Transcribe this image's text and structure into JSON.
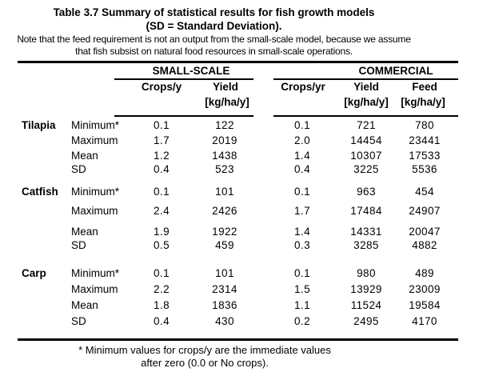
{
  "title": {
    "line1": "Table 3.7 Summary of statistical results for fish growth models",
    "line2": "(SD = Standard Deviation)."
  },
  "note": {
    "line1": "Note that the feed requirement is not an output from the small-scale model, because we assume",
    "line2": "that fish subsist on natural food resources in small-scale operations."
  },
  "table": {
    "groups": [
      {
        "label": "SMALL-SCALE",
        "columns": [
          {
            "name": "Crops/y",
            "unit": ""
          },
          {
            "name": "Yield",
            "unit": "[kg/ha/y]"
          }
        ]
      },
      {
        "label": "COMMERCIAL",
        "columns": [
          {
            "name": "Crops/yr",
            "unit": ""
          },
          {
            "name": "Yield",
            "unit": "[kg/ha/y]"
          },
          {
            "name": "Feed",
            "unit": "[kg/ha/y]"
          }
        ]
      }
    ],
    "sections": [
      {
        "species": "Tilapia",
        "rows": [
          {
            "stat": "Minimum*",
            "values": [
              "0.1",
              "122",
              "0.1",
              "721",
              "780"
            ]
          },
          {
            "stat": "Maximum",
            "values": [
              "1.7",
              "2019",
              "2.0",
              "14454",
              "23441"
            ]
          },
          {
            "stat": "Mean",
            "values": [
              "1.2",
              "1438",
              "1.4",
              "10307",
              "17533"
            ]
          },
          {
            "stat": "SD",
            "values": [
              "0.4",
              "523",
              "0.4",
              "3225",
              "5536"
            ]
          }
        ]
      },
      {
        "species": "Catfish",
        "rows": [
          {
            "stat": "Minimum*",
            "values": [
              "0.1",
              "101",
              "0.1",
              "963",
              "454"
            ]
          },
          {
            "stat": "Maximum",
            "values": [
              "2.4",
              "2426",
              "1.7",
              "17484",
              "24907"
            ]
          },
          {
            "stat": "Mean",
            "values": [
              "1.9",
              "1922",
              "1.4",
              "14331",
              "20047"
            ]
          },
          {
            "stat": "SD",
            "values": [
              "0.5",
              "459",
              "0.3",
              "3285",
              "4882"
            ]
          }
        ]
      },
      {
        "species": "Carp",
        "rows": [
          {
            "stat": "Minimum*",
            "values": [
              "0.1",
              "101",
              "0.1",
              "980",
              "489"
            ]
          },
          {
            "stat": "Maximum",
            "values": [
              "2.2",
              "2314",
              "1.5",
              "13929",
              "23009"
            ]
          },
          {
            "stat": "Mean",
            "values": [
              "1.8",
              "1836",
              "1.1",
              "11524",
              "19584"
            ]
          },
          {
            "stat": "SD",
            "values": [
              "0.4",
              "430",
              "0.2",
              "2495",
              "4170"
            ]
          }
        ]
      }
    ]
  },
  "footnote": {
    "line1": "* Minimum values for crops/y are the immediate values",
    "line2": "after zero (0.0 or No crops)."
  },
  "colors": {
    "text": "#000000",
    "background": "#ffffff",
    "rule": "#000000"
  }
}
